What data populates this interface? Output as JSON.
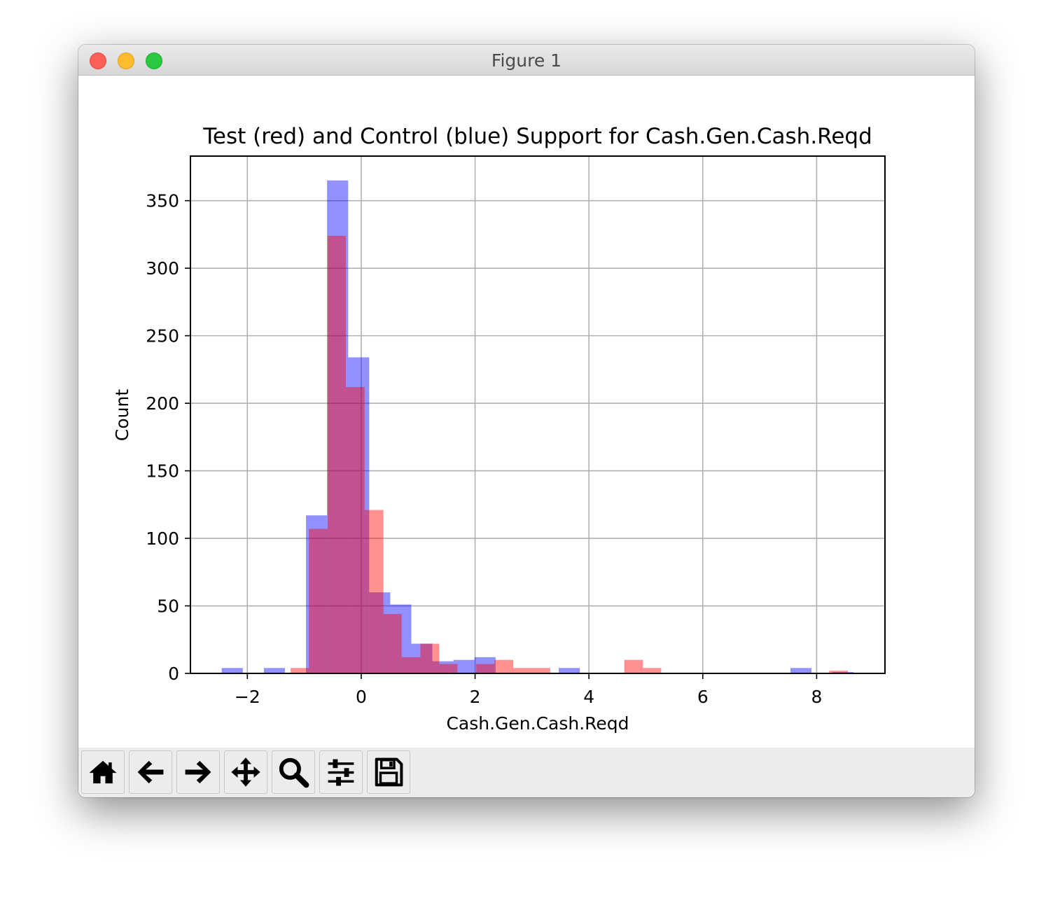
{
  "window": {
    "title": "Figure 1"
  },
  "toolbar": {
    "buttons": [
      {
        "name": "home-button",
        "icon": "home-icon"
      },
      {
        "name": "back-button",
        "icon": "arrow-left-icon"
      },
      {
        "name": "forward-button",
        "icon": "arrow-right-icon"
      },
      {
        "name": "pan-button",
        "icon": "move-icon"
      },
      {
        "name": "zoom-button",
        "icon": "magnifier-icon"
      },
      {
        "name": "configure-subplots-button",
        "icon": "sliders-icon"
      },
      {
        "name": "save-button",
        "icon": "floppy-disk-icon"
      }
    ]
  },
  "chart_data": {
    "type": "bar",
    "title": "Test (red) and Control (blue) Support for Cash.Gen.Cash.Reqd",
    "xlabel": "Cash.Gen.Cash.Reqd",
    "ylabel": "Count",
    "xlim": [
      -3.0,
      9.2
    ],
    "ylim": [
      0,
      383
    ],
    "xticks": [
      -2,
      0,
      2,
      4,
      6,
      8
    ],
    "xtick_labels": [
      "−2",
      "0",
      "2",
      "4",
      "6",
      "8"
    ],
    "yticks": [
      0,
      50,
      100,
      150,
      200,
      250,
      300,
      350
    ],
    "ytick_labels": [
      "0",
      "50",
      "100",
      "150",
      "200",
      "250",
      "300",
      "350"
    ],
    "grid": true,
    "series": [
      {
        "name": "Control (blue)",
        "color": "#0000ff",
        "alpha": 0.43,
        "bins": [
          [
            -2.45,
            -2.08,
            4
          ],
          [
            -1.71,
            -1.34,
            4
          ],
          [
            -0.97,
            -0.6,
            117
          ],
          [
            -0.6,
            -0.23,
            365
          ],
          [
            -0.23,
            0.14,
            234
          ],
          [
            0.14,
            0.51,
            60
          ],
          [
            0.51,
            0.88,
            51
          ],
          [
            0.88,
            1.25,
            22
          ],
          [
            1.25,
            1.62,
            9
          ],
          [
            1.62,
            1.99,
            10
          ],
          [
            1.99,
            2.36,
            12
          ],
          [
            3.47,
            3.84,
            4
          ],
          [
            7.54,
            7.91,
            4
          ],
          [
            8.28,
            8.65,
            1
          ]
        ]
      },
      {
        "name": "Test (red)",
        "color": "#ff0000",
        "alpha": 0.43,
        "bins": [
          [
            -1.24,
            -0.92,
            4
          ],
          [
            -0.92,
            -0.59,
            107
          ],
          [
            -0.59,
            -0.27,
            324
          ],
          [
            -0.27,
            0.06,
            212
          ],
          [
            0.06,
            0.39,
            121
          ],
          [
            0.39,
            0.71,
            44
          ],
          [
            0.71,
            1.04,
            12
          ],
          [
            1.04,
            1.37,
            22
          ],
          [
            1.37,
            1.69,
            7
          ],
          [
            2.02,
            2.34,
            7
          ],
          [
            2.34,
            2.67,
            10
          ],
          [
            2.67,
            2.99,
            4
          ],
          [
            2.99,
            3.32,
            4
          ],
          [
            4.62,
            4.95,
            10
          ],
          [
            4.95,
            5.27,
            4
          ],
          [
            8.22,
            8.55,
            2
          ]
        ]
      }
    ]
  }
}
